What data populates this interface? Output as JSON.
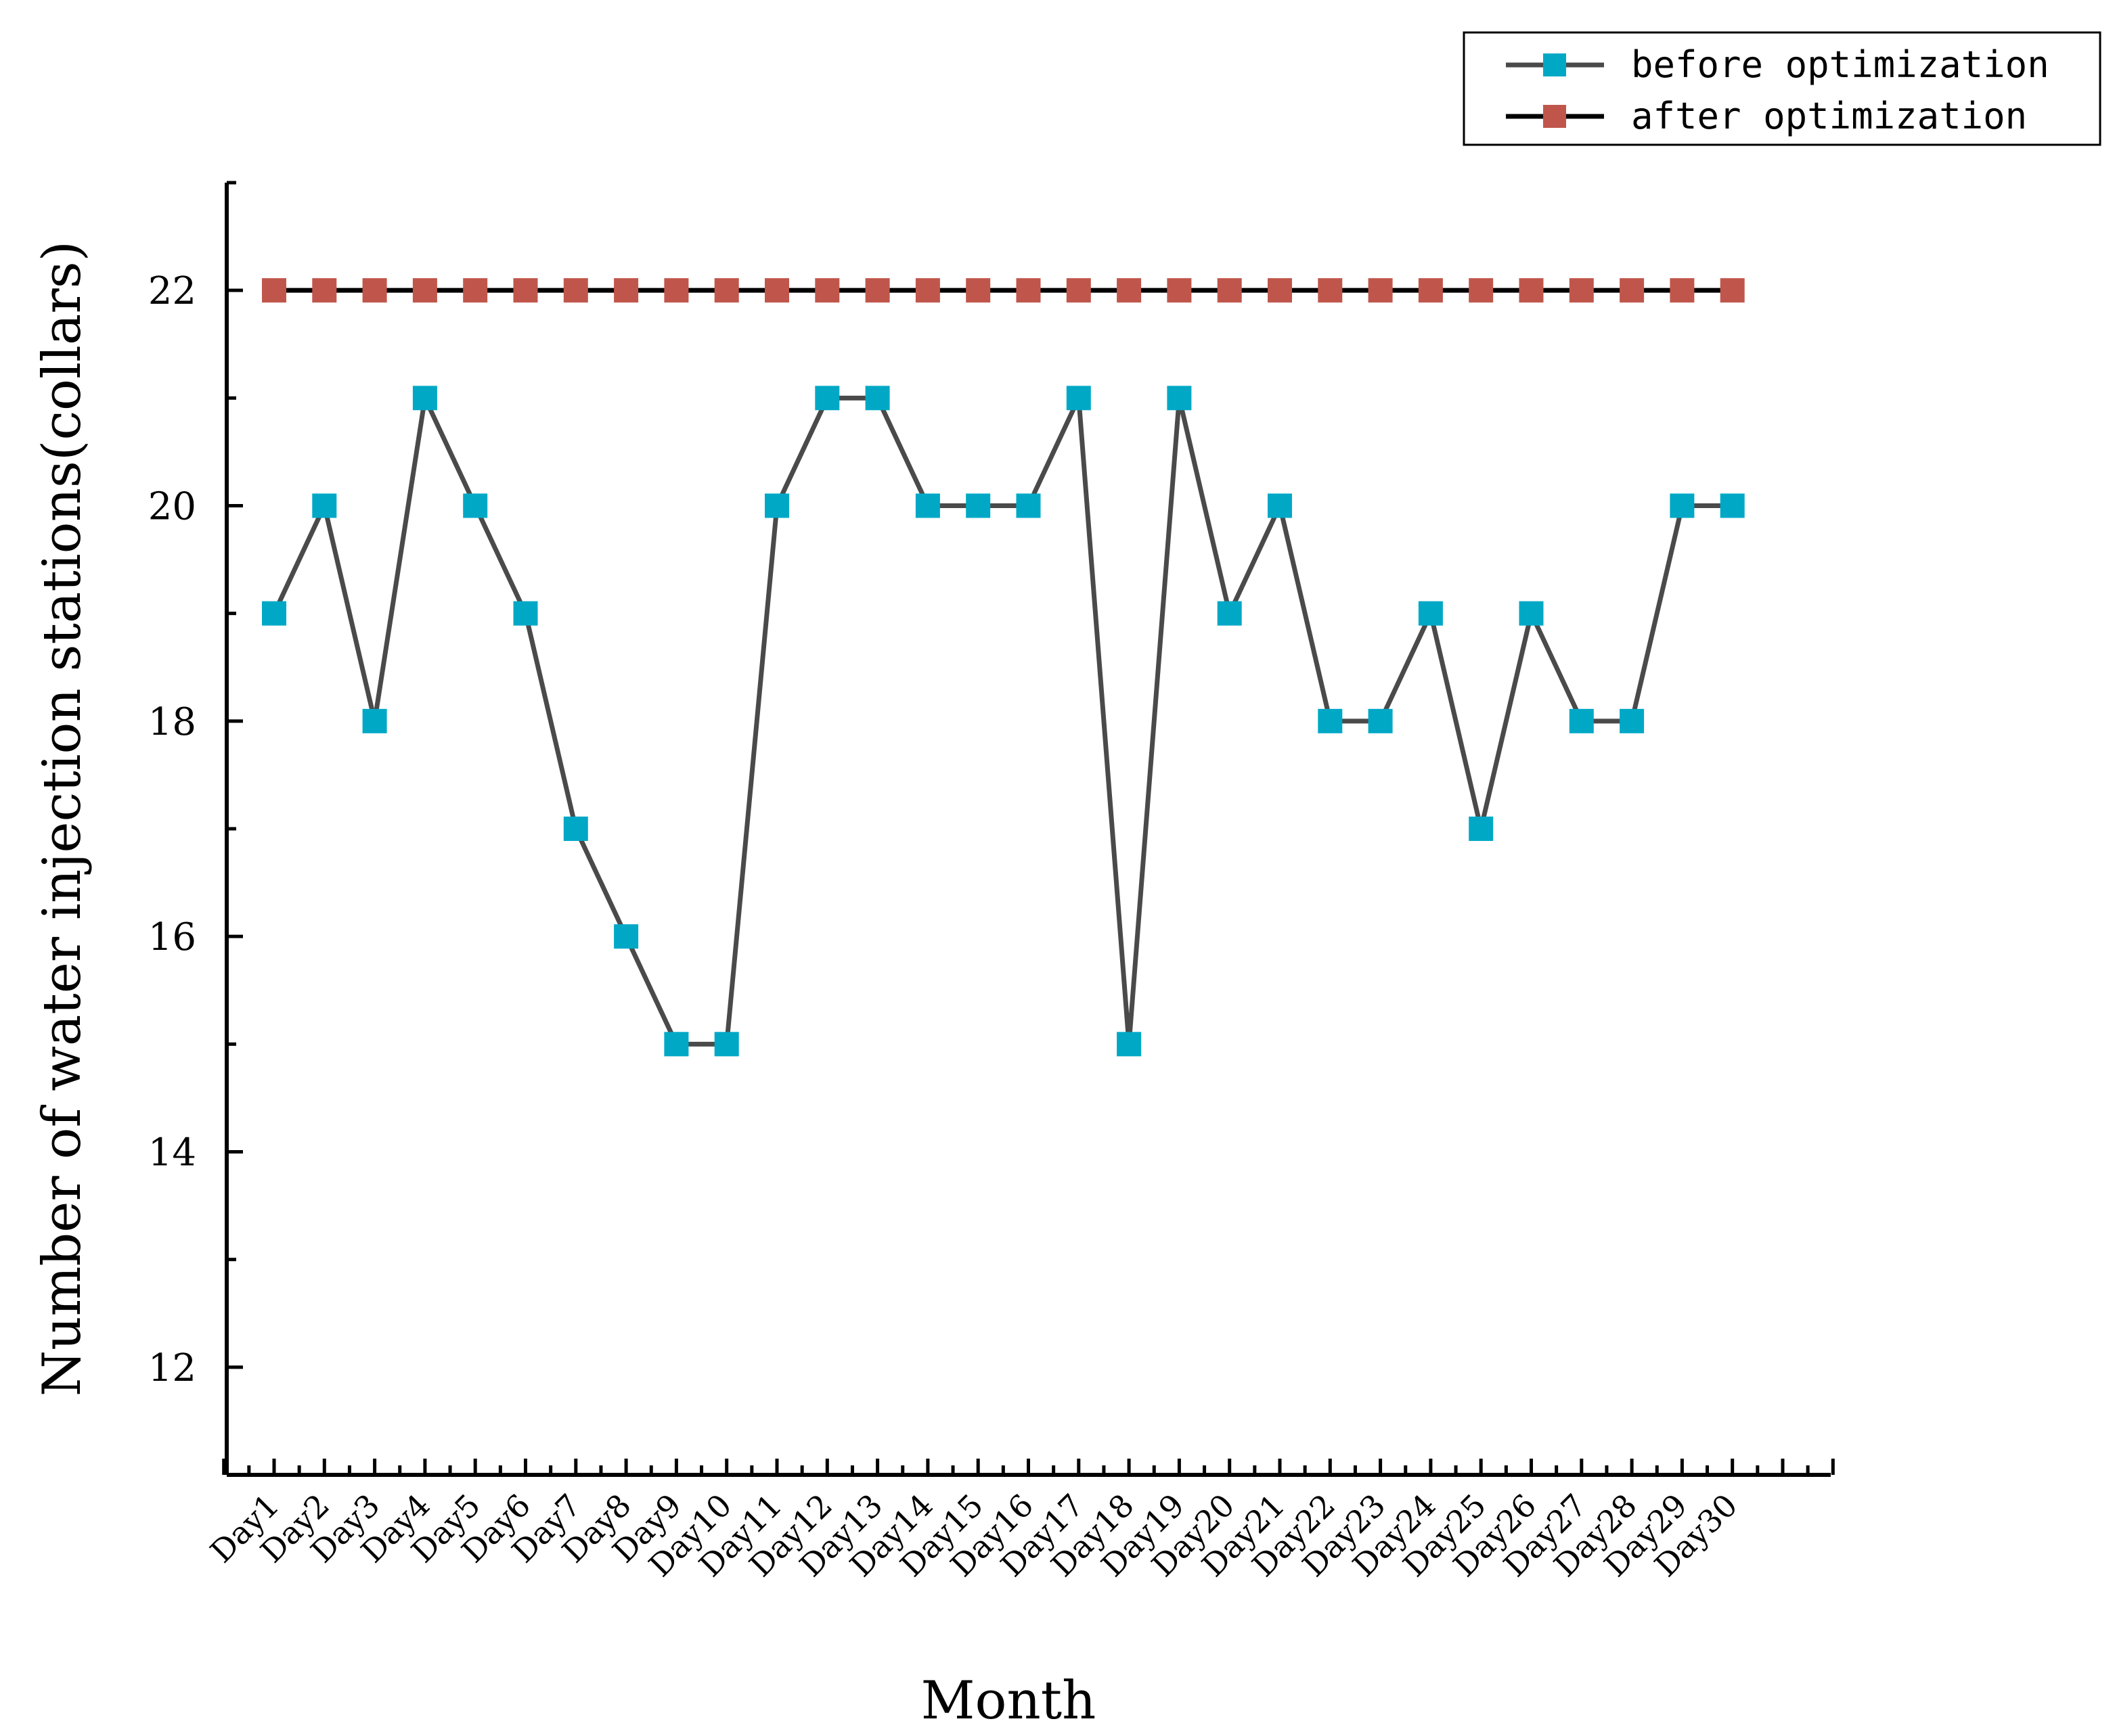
{
  "chart_data": {
    "type": "line",
    "x": [
      "Day1",
      "Day2",
      "Day3",
      "Day4",
      "Day5",
      "Day6",
      "Day7",
      "Day8",
      "Day9",
      "Day10",
      "Day11",
      "Day12",
      "Day13",
      "Day14",
      "Day15",
      "Day16",
      "Day17",
      "Day18",
      "Day19",
      "Day20",
      "Day21",
      "Day22",
      "Day23",
      "Day24",
      "Day25",
      "Day26",
      "Day27",
      "Day28",
      "Day29",
      "Day30"
    ],
    "series": [
      {
        "name": "before optimization",
        "values": [
          19,
          20,
          18,
          21,
          20,
          19,
          17,
          16,
          15,
          15,
          20,
          21,
          21,
          20,
          20,
          20,
          21,
          15,
          21,
          19,
          20,
          18,
          18,
          19,
          17,
          19,
          18,
          18,
          20,
          20
        ],
        "marker_color": "#00A8C6",
        "line_color": "#4a4a4a"
      },
      {
        "name": "after optimization",
        "values": [
          22,
          22,
          22,
          22,
          22,
          22,
          22,
          22,
          22,
          22,
          22,
          22,
          22,
          22,
          22,
          22,
          22,
          22,
          22,
          22,
          22,
          22,
          22,
          22,
          22,
          22,
          22,
          22,
          22,
          22
        ],
        "marker_color": "#C0564B",
        "line_color": "#000000"
      }
    ],
    "xlabel": "Month",
    "ylabel": "Number of water injection stations(collars)",
    "ylim": [
      11,
      23
    ],
    "yticks": [
      12,
      14,
      16,
      18,
      20,
      22
    ],
    "grid": false,
    "legend_position": "top-right"
  }
}
